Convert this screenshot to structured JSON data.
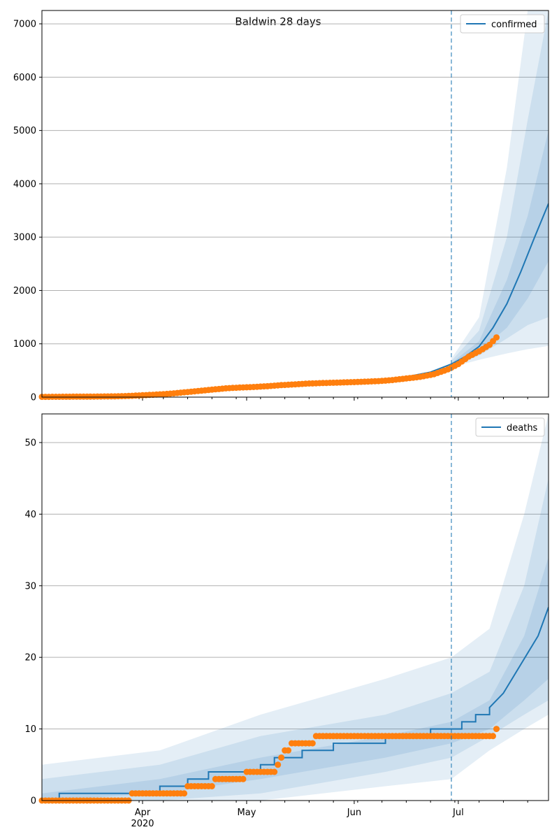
{
  "figure": {
    "title": "Baldwin 28 days"
  },
  "colors": {
    "model": "#1f77b4",
    "observed": "#ff7f0e",
    "band": "#1f77b4",
    "grid": "#b0b0b0",
    "vline": "#1f77b4"
  },
  "chart_data": [
    {
      "type": "line",
      "panel": "top",
      "title": "Baldwin 28 days",
      "legend": {
        "label": "confirmed",
        "position": "top-right"
      },
      "x_range": [
        "2020-03-03",
        "2020-07-27"
      ],
      "ylim": [
        0,
        7250
      ],
      "yticks": [
        0,
        1000,
        2000,
        3000,
        4000,
        5000,
        6000,
        7000
      ],
      "grid": "y",
      "forecast_start": "2020-06-29",
      "model": {
        "name": "confirmed",
        "x": [
          "2020-03-03",
          "2020-03-10",
          "2020-03-17",
          "2020-03-24",
          "2020-03-31",
          "2020-04-07",
          "2020-04-14",
          "2020-04-21",
          "2020-04-28",
          "2020-05-05",
          "2020-05-12",
          "2020-05-19",
          "2020-05-26",
          "2020-06-02",
          "2020-06-09",
          "2020-06-16",
          "2020-06-23",
          "2020-06-29",
          "2020-07-03",
          "2020-07-07",
          "2020-07-11",
          "2020-07-15",
          "2020-07-19",
          "2020-07-23",
          "2020-07-27"
        ],
        "y": [
          5,
          8,
          12,
          20,
          40,
          70,
          110,
          150,
          180,
          210,
          240,
          265,
          280,
          300,
          330,
          380,
          470,
          620,
          760,
          950,
          1300,
          1750,
          2350,
          3000,
          3630
        ]
      },
      "bands": [
        {
          "x": [
            "2020-06-29",
            "2020-07-07",
            "2020-07-15",
            "2020-07-21",
            "2020-07-27"
          ],
          "lower": [
            600,
            860,
            1300,
            1850,
            2550
          ],
          "upper": [
            640,
            1050,
            2200,
            3400,
            5000
          ]
        },
        {
          "x": [
            "2020-06-29",
            "2020-07-07",
            "2020-07-15",
            "2020-07-21",
            "2020-07-27"
          ],
          "lower": [
            580,
            780,
            1100,
            1350,
            1500
          ],
          "upper": [
            680,
            1250,
            3000,
            5200,
            7250
          ]
        },
        {
          "x": [
            "2020-06-29",
            "2020-07-07",
            "2020-07-15",
            "2020-07-21",
            "2020-07-27"
          ],
          "lower": [
            560,
            700,
            820,
            900,
            960
          ],
          "upper": [
            720,
            1500,
            4300,
            7250,
            7250
          ]
        }
      ],
      "observed": {
        "x": [
          "2020-03-03",
          "2020-03-10",
          "2020-03-17",
          "2020-03-24",
          "2020-03-28",
          "2020-04-01",
          "2020-04-05",
          "2020-04-09",
          "2020-04-13",
          "2020-04-17",
          "2020-04-21",
          "2020-04-25",
          "2020-04-29",
          "2020-05-03",
          "2020-05-07",
          "2020-05-11",
          "2020-05-15",
          "2020-05-19",
          "2020-05-23",
          "2020-05-27",
          "2020-05-31",
          "2020-06-04",
          "2020-06-08",
          "2020-06-12",
          "2020-06-16",
          "2020-06-20",
          "2020-06-24",
          "2020-06-28",
          "2020-07-01",
          "2020-07-04",
          "2020-07-07",
          "2020-07-10",
          "2020-07-12"
        ],
        "y": [
          5,
          8,
          10,
          15,
          22,
          35,
          48,
          65,
          90,
          115,
          140,
          165,
          180,
          190,
          205,
          225,
          240,
          255,
          265,
          272,
          280,
          290,
          300,
          320,
          350,
          380,
          430,
          520,
          620,
          760,
          860,
          980,
          1120
        ]
      }
    },
    {
      "type": "line",
      "panel": "bottom",
      "legend": {
        "label": "deaths",
        "position": "top-right"
      },
      "x_range": [
        "2020-03-03",
        "2020-07-27"
      ],
      "ylim": [
        0,
        54
      ],
      "yticks": [
        0,
        10,
        20,
        30,
        40,
        50
      ],
      "grid": "y",
      "forecast_start": "2020-06-29",
      "model": {
        "name": "deaths",
        "x": [
          "2020-03-03",
          "2020-03-08",
          "2020-03-08",
          "2020-04-06",
          "2020-04-06",
          "2020-04-14",
          "2020-04-14",
          "2020-04-20",
          "2020-04-20",
          "2020-05-05",
          "2020-05-05",
          "2020-05-09",
          "2020-05-09",
          "2020-05-17",
          "2020-05-17",
          "2020-05-26",
          "2020-05-26",
          "2020-06-10",
          "2020-06-10",
          "2020-06-23",
          "2020-06-23",
          "2020-07-02",
          "2020-07-02",
          "2020-07-06",
          "2020-07-06",
          "2020-07-10",
          "2020-07-10",
          "2020-07-14",
          "2020-07-19",
          "2020-07-24",
          "2020-07-27"
        ],
        "y": [
          0,
          0,
          1,
          1,
          2,
          2,
          3,
          3,
          4,
          4,
          5,
          5,
          6,
          6,
          7,
          7,
          8,
          8,
          9,
          9,
          10,
          10,
          11,
          11,
          12,
          12,
          13,
          15,
          19,
          23,
          27
        ]
      },
      "bands": [
        {
          "x": [
            "2020-03-03",
            "2020-04-06",
            "2020-05-05",
            "2020-06-10",
            "2020-06-29",
            "2020-07-10",
            "2020-07-20",
            "2020-07-27"
          ],
          "lower": [
            0,
            1,
            3,
            6,
            8,
            10,
            14,
            17
          ],
          "upper": [
            1,
            3,
            6,
            9,
            11,
            14,
            23,
            34
          ]
        },
        {
          "x": [
            "2020-03-03",
            "2020-04-06",
            "2020-05-05",
            "2020-06-10",
            "2020-06-29",
            "2020-07-10",
            "2020-07-20",
            "2020-07-27"
          ],
          "lower": [
            0,
            0,
            1,
            4,
            6,
            9,
            12,
            14
          ],
          "upper": [
            3,
            5,
            9,
            12,
            15,
            18,
            30,
            45
          ]
        },
        {
          "x": [
            "2020-03-03",
            "2020-04-06",
            "2020-05-05",
            "2020-06-10",
            "2020-06-29",
            "2020-07-10",
            "2020-07-20",
            "2020-07-27"
          ],
          "lower": [
            0,
            0,
            0,
            2,
            3,
            7,
            10,
            12
          ],
          "upper": [
            5,
            7,
            12,
            17,
            20,
            24,
            40,
            54
          ]
        }
      ],
      "observed": {
        "x": [
          "2020-03-03",
          "2020-03-15",
          "2020-03-27",
          "2020-03-29",
          "2020-04-05",
          "2020-04-12",
          "2020-04-14",
          "2020-04-20",
          "2020-04-22",
          "2020-04-30",
          "2020-05-01",
          "2020-05-05",
          "2020-05-10",
          "2020-05-11",
          "2020-05-12",
          "2020-05-14",
          "2020-05-20",
          "2020-05-21",
          "2020-06-01",
          "2020-06-15",
          "2020-06-28",
          "2020-07-05",
          "2020-07-11",
          "2020-07-12"
        ],
        "y": [
          0,
          0,
          0,
          1,
          1,
          1,
          2,
          2,
          3,
          3,
          4,
          4,
          5,
          6,
          7,
          8,
          8,
          9,
          9,
          9,
          9,
          9,
          9,
          10
        ]
      }
    }
  ],
  "axis": {
    "x_ticks": [
      {
        "date": "2020-04-01",
        "label": "Apr",
        "sublabel": "2020"
      },
      {
        "date": "2020-05-01",
        "label": "May",
        "sublabel": ""
      },
      {
        "date": "2020-06-01",
        "label": "Jun",
        "sublabel": ""
      },
      {
        "date": "2020-07-01",
        "label": "Jul",
        "sublabel": ""
      }
    ]
  }
}
